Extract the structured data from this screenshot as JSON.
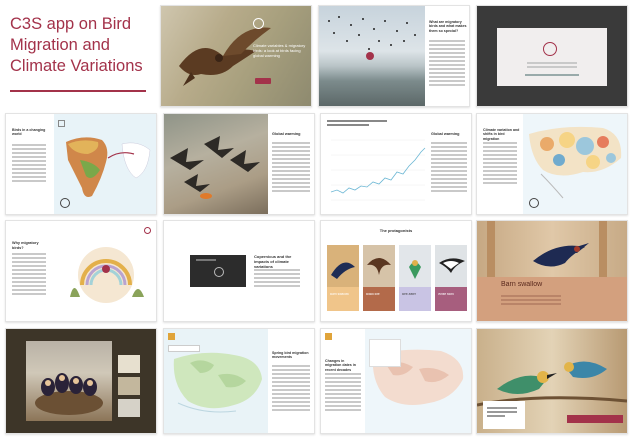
{
  "title": {
    "line1": "C3S app on Bird",
    "line2": "Migration and",
    "line3": "Climate Variations"
  },
  "colors": {
    "accent": "#a3324a",
    "map_land": "#c9e6f0",
    "sea": "#e8f3f8"
  },
  "screens": {
    "s1": {
      "heading": "Climate variables & migratory birds: a look at birds facing global warming"
    },
    "s2": {
      "heading": "What are migratory birds and what makes them so special?"
    },
    "s4": {
      "heading": "Birds in a changing world"
    },
    "s5": {
      "heading": "Global warming"
    },
    "s6": {
      "heading": "Global warming"
    },
    "s7": {
      "heading": "Climate variation and shifts in bird migration"
    },
    "s8": {
      "heading": "Why migratory birds?"
    },
    "s9": {
      "heading": "Copernicus and the impacts of climate variations"
    },
    "s10": {
      "heading": "The protagonists",
      "cards": [
        "Barn swallow",
        "Black kite",
        "Bee-eater",
        "White stork"
      ]
    },
    "s11": {
      "heading": "Barn swallow"
    },
    "s13": {
      "heading": "Spring bird migration movements"
    },
    "s14": {
      "heading": "Changes in migration dates in recent decades"
    }
  }
}
